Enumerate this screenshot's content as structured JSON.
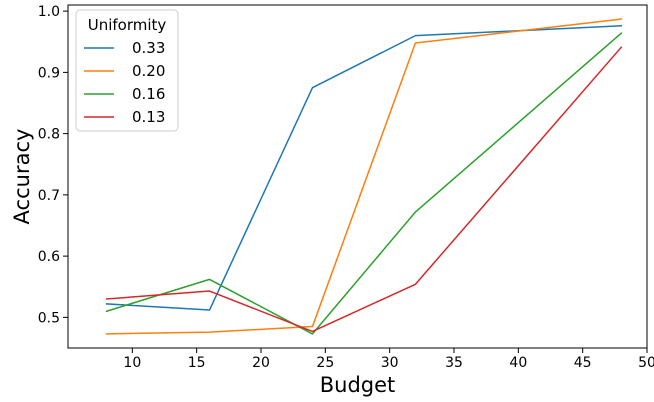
{
  "chart_data": {
    "type": "line",
    "xlabel": "Budget",
    "ylabel": "Accuracy",
    "xlim": [
      5.0,
      50.0
    ],
    "ylim": [
      0.45,
      1.01
    ],
    "xticks": [
      10,
      15,
      20,
      25,
      30,
      35,
      40,
      45,
      50
    ],
    "yticks": [
      0.5,
      0.6,
      0.7,
      0.8,
      0.9,
      1.0
    ],
    "xtick_labels": [
      "10",
      "15",
      "20",
      "25",
      "30",
      "35",
      "40",
      "45",
      "50"
    ],
    "ytick_labels": [
      "0.5",
      "0.6",
      "0.7",
      "0.8",
      "0.9",
      "1.0"
    ],
    "grid": false,
    "legend": {
      "title": "Uniformity",
      "placement": "top-left"
    },
    "series": [
      {
        "name": "0.33",
        "color": "#1f77b4",
        "x": [
          8,
          16,
          24,
          32,
          48
        ],
        "y": [
          0.522,
          0.512,
          0.875,
          0.96,
          0.976
        ]
      },
      {
        "name": "0.20",
        "color": "#ff7f0e",
        "x": [
          8,
          16,
          24,
          32,
          48
        ],
        "y": [
          0.473,
          0.476,
          0.485,
          0.948,
          0.987
        ]
      },
      {
        "name": "0.16",
        "color": "#2ca02c",
        "x": [
          8,
          16,
          24,
          32,
          48
        ],
        "y": [
          0.51,
          0.562,
          0.473,
          0.672,
          0.964
        ]
      },
      {
        "name": "0.13",
        "color": "#d62728",
        "x": [
          8,
          16,
          24,
          32,
          48
        ],
        "y": [
          0.53,
          0.543,
          0.477,
          0.554,
          0.941
        ]
      }
    ]
  }
}
